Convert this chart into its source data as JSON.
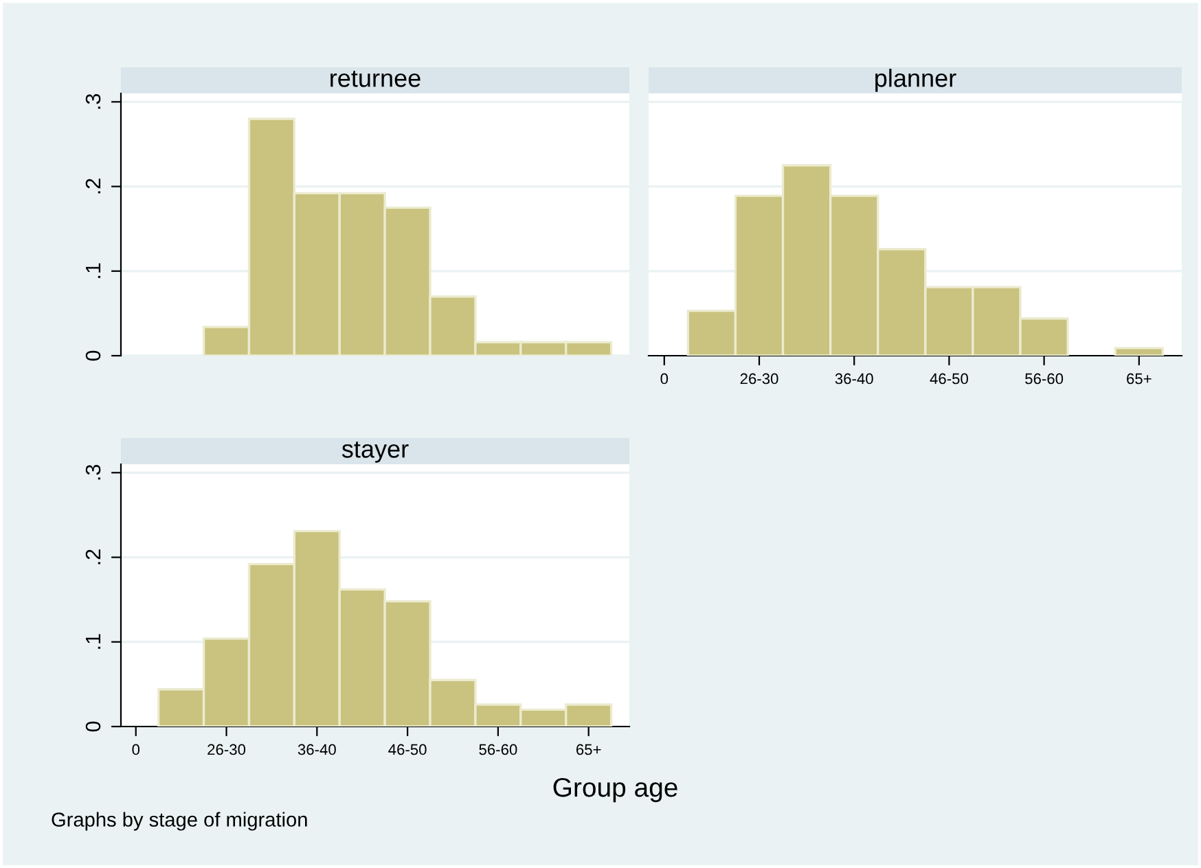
{
  "chart_data": [
    {
      "type": "bar",
      "title": "returnee",
      "categories": [
        null,
        null,
        null,
        null,
        null,
        null,
        null,
        null,
        null,
        null,
        null
      ],
      "values": [
        null,
        null,
        0.034,
        0.28,
        0.192,
        0.192,
        0.175,
        0.07,
        0.016,
        0.016,
        0.016
      ],
      "color": "#c9c37f",
      "ylim": [
        0,
        0.31
      ],
      "yticks": [
        0,
        {
          "value": 0.1,
          "label": ".1"
        },
        {
          "value": 0.2,
          "label": ".2"
        },
        {
          "value": 0.3,
          "label": ".3"
        }
      ],
      "grid": "y",
      "tick_labels": "y"
    },
    {
      "type": "bar",
      "title": "planner",
      "categories": [
        "0",
        null,
        "26-30",
        null,
        "36-40",
        null,
        "46-50",
        null,
        "56-60",
        null,
        "65+"
      ],
      "values": [
        null,
        0.053,
        0.189,
        0.225,
        0.189,
        0.126,
        0.081,
        0.081,
        0.044,
        null,
        0.009
      ],
      "color": "#c9c37f",
      "ylim": [
        0,
        0.31
      ],
      "yticks": [
        {
          "value": 0,
          "label": null
        },
        {
          "value": 0.1,
          "label": null
        },
        {
          "value": 0.2,
          "label": null
        },
        {
          "value": 0.3,
          "label": null
        }
      ],
      "grid": "y",
      "tick_labels": "x"
    },
    {
      "type": "bar",
      "title": "stayer",
      "xlabel": "Group age",
      "annotations": [
        "Graphs by stage of migration"
      ],
      "categories": [
        "0",
        null,
        "26-30",
        null,
        "36-40",
        null,
        "46-50",
        null,
        "56-60",
        null,
        "65+"
      ],
      "values": [
        null,
        0.044,
        0.104,
        0.192,
        0.231,
        0.162,
        0.148,
        0.055,
        0.026,
        0.02,
        0.026
      ],
      "color": "#c9c37f",
      "ylim": [
        0,
        0.31
      ],
      "yticks": [
        0,
        {
          "value": 0.1,
          "label": ".1"
        },
        {
          "value": 0.2,
          "label": ".2"
        },
        {
          "value": 0.3,
          "label": ".3"
        }
      ],
      "grid": "y"
    }
  ]
}
